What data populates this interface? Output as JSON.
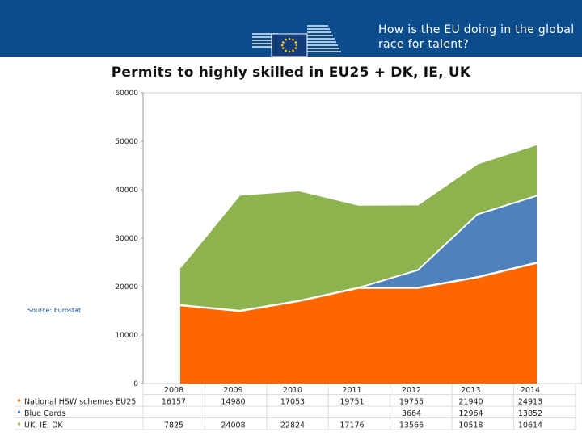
{
  "header": {
    "title": "How is the EU doing in the global race for talent?"
  },
  "colors": {
    "header_bg": "#0b4c8c",
    "national": "#ff6600",
    "blue_cards": "#4f81bd",
    "uk_ie_dk": "#8db34e"
  },
  "icons": {
    "logo": "european-commission-logo"
  },
  "source": "Source: Eurostat",
  "chart_data": {
    "type": "area",
    "stacked": true,
    "title": "Permits to highly skilled in EU25 + DK, IE, UK",
    "categories": [
      "2008",
      "2009",
      "2010",
      "2011",
      "2012",
      "2013",
      "2014"
    ],
    "ylim": [
      0,
      60000
    ],
    "yticks": [
      "60000",
      "50000",
      "40000",
      "30000",
      "20000",
      "10000",
      "0"
    ],
    "grid": false,
    "series": [
      {
        "name": "National HSW schemes EU25",
        "values": [
          16157,
          14980,
          17053,
          19751,
          19755,
          21940,
          24913
        ],
        "labels": [
          "16157",
          "14980",
          "17053",
          "19751",
          "19755",
          "21940",
          "24913"
        ]
      },
      {
        "name": "Blue Cards",
        "values": [
          0,
          0,
          0,
          0,
          3664,
          12964,
          13852
        ],
        "labels": [
          "",
          "",
          "",
          "",
          "3664",
          "12964",
          "13852"
        ]
      },
      {
        "name": "UK, IE, DK",
        "values": [
          7825,
          24008,
          22824,
          17176,
          13566,
          10518,
          10614
        ],
        "labels": [
          "7825",
          "24008",
          "22824",
          "17176",
          "13566",
          "10518",
          "10614"
        ]
      }
    ]
  }
}
